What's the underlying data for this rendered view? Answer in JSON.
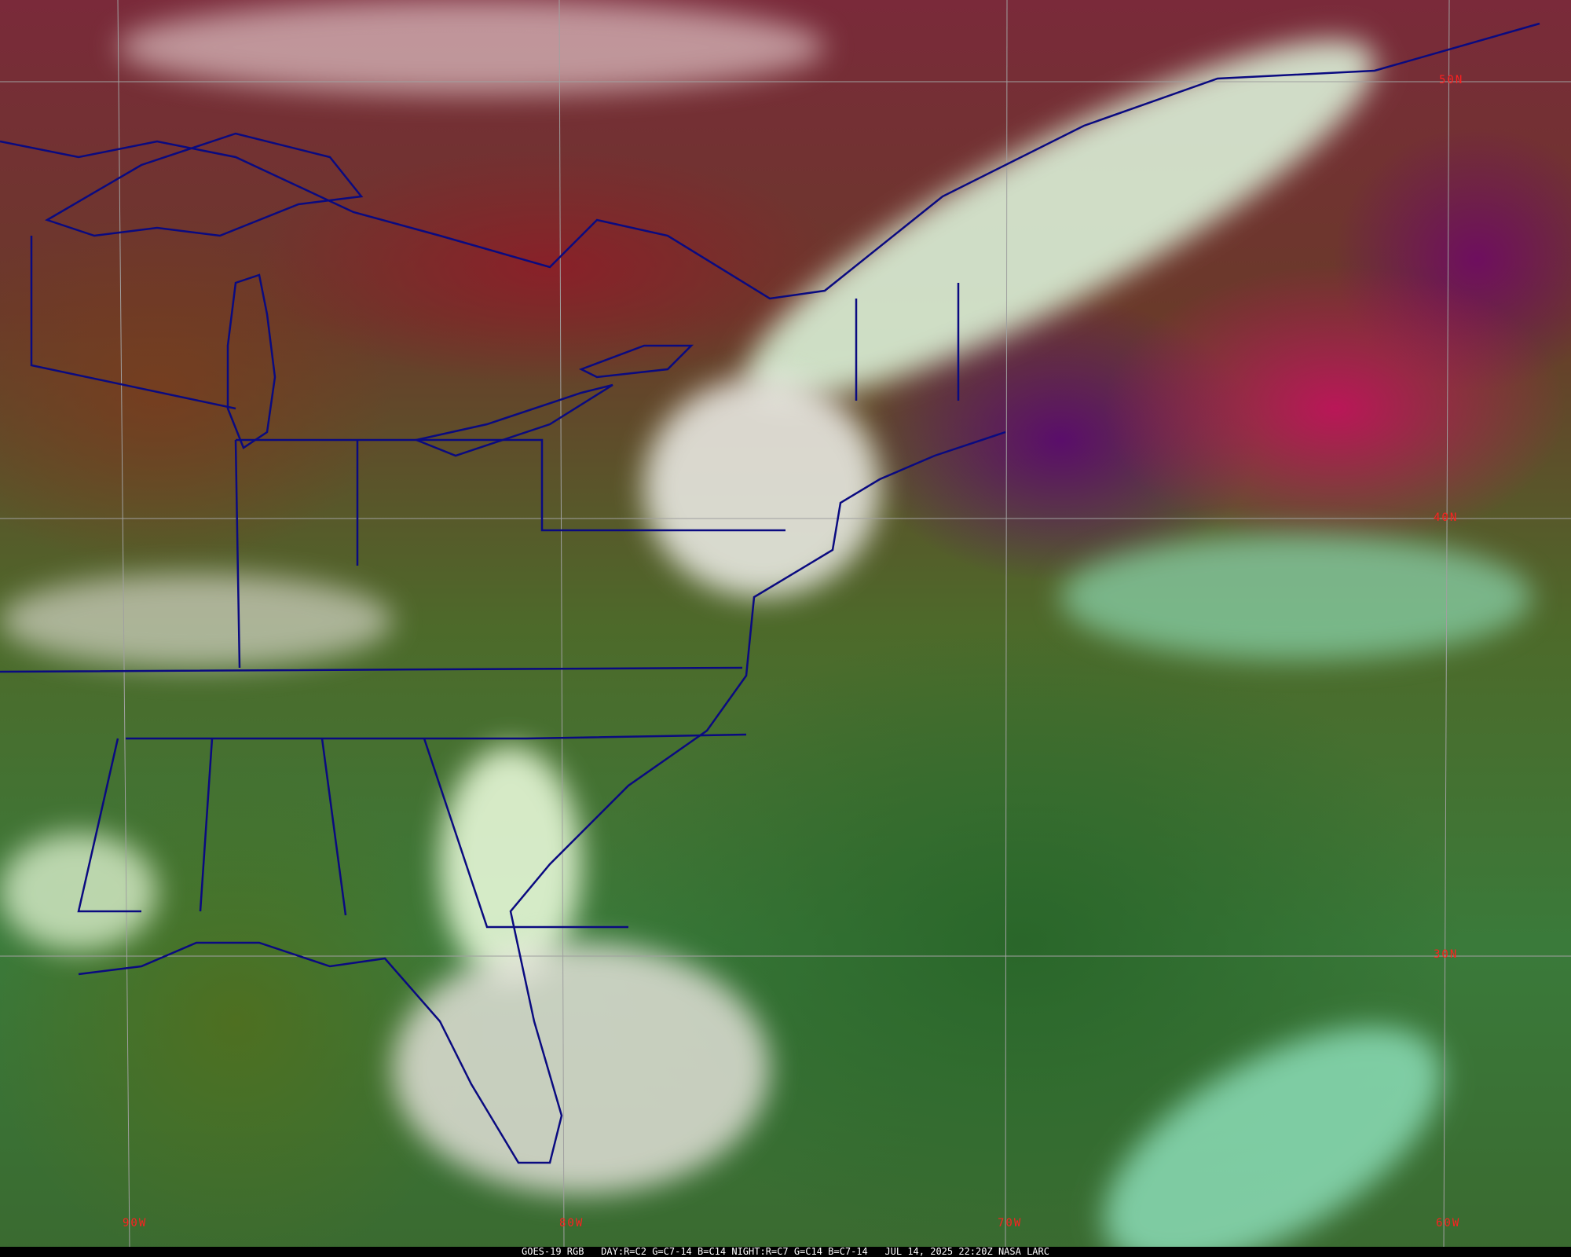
{
  "caption": {
    "satellite": "GOES-19 RGB",
    "day_recipe": "DAY:R=C2 G=C7-14 B=C14",
    "night_recipe": "NIGHT:R=C7 G=C14 B=C7-14",
    "timestamp": "JUL 14, 2025 22:20Z",
    "credit": "NASA LARC"
  },
  "grid": {
    "latitude_labels": [
      "50N",
      "40N",
      "30N"
    ],
    "longitude_labels": [
      "90W",
      "80W",
      "70W",
      "60W"
    ],
    "label_color": "#ff2020",
    "line_color": "#a0a0a0"
  },
  "colors": {
    "boundaries": "#0a0a80",
    "cloud_tops": "#e8ffe0",
    "ocean_clear": "#3a7a3a",
    "dry_air": "#7a2a3a"
  }
}
